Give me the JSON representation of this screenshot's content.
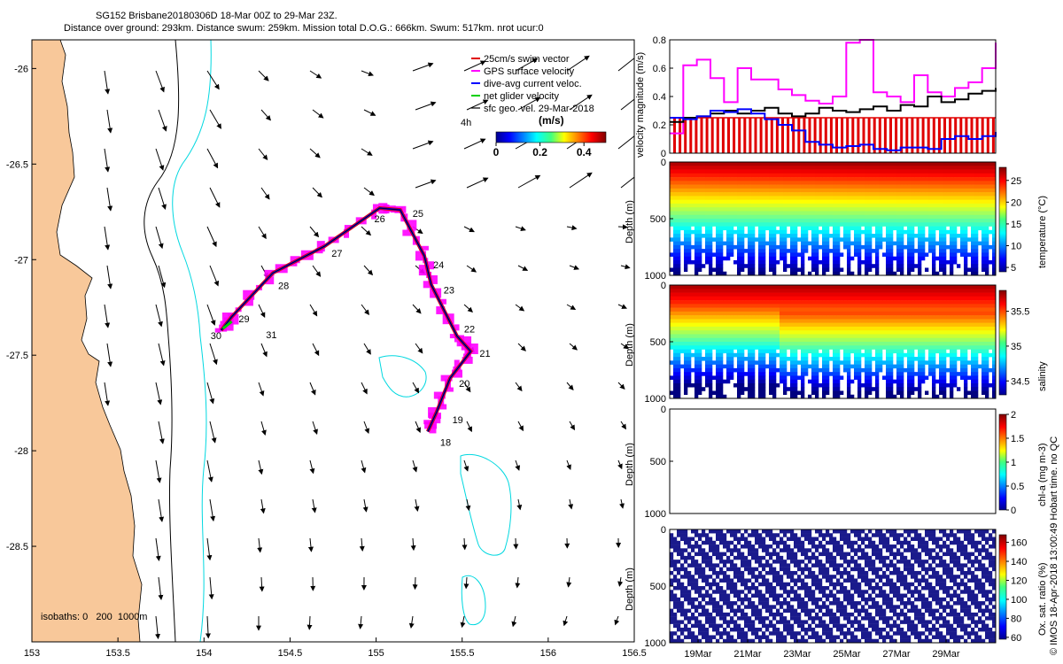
{
  "header": {
    "line1": "SG152 Brisbane20180306D 18-Mar 00Z to 29-Mar 23Z.",
    "line2": "Distance over ground: 293km. Distance swum: 259km. Mission total D.O.G.: 666km. Swum: 517km. nrot ucur:0"
  },
  "credit": "© IMOS 18-Apr-2018 13:00:49 Hobart time. no QC",
  "colors": {
    "land": "#f8c89a",
    "swim": "#e00000",
    "gps": "#ff00ff",
    "dac": "#0000ff",
    "net": "#00d000",
    "isobath_near": "#000000",
    "isobath_far": "#00d8e0"
  },
  "chart_data": [
    {
      "type": "scatter",
      "panel": "map",
      "xticks": [
        "153",
        "153.5",
        "154",
        "154.5",
        "155",
        "155.5",
        "156",
        "156.5"
      ],
      "yticks": [
        "-26",
        "-26.5",
        "-27",
        "-27.5",
        "-28",
        "-28.5"
      ],
      "xlim": [
        153,
        156.5
      ],
      "ylim": [
        -29,
        -25.85
      ],
      "legend": {
        "position": "top-right",
        "entries": [
          "25cm/s swim vector",
          "GPS surface velocity",
          "dive-avg current veloc.",
          "net glider velocity",
          "sfc geo. vel. 29-Mar-2018"
        ]
      },
      "arrow_scale_label": "4h",
      "colorbar": {
        "label": "(m/s)",
        "ticks": [
          "0",
          "0.2",
          "0.4"
        ],
        "range": [
          0,
          0.5
        ]
      },
      "isobaths_label": "isobaths: 0   200  1000m",
      "track_points": [
        {
          "day": "30",
          "lon": 154.1,
          "lat": -27.37
        },
        {
          "day": "29",
          "lon": 154.16,
          "lat": -27.3
        },
        {
          "day": "28",
          "lon": 154.4,
          "lat": -27.07
        },
        {
          "day": "27",
          "lon": 154.7,
          "lat": -26.93
        },
        {
          "day": "26",
          "lon": 155.02,
          "lat": -26.73
        },
        {
          "day": "25",
          "lon": 155.14,
          "lat": -26.74
        },
        {
          "day": "24",
          "lon": 155.28,
          "lat": -26.98
        },
        {
          "day": "23",
          "lon": 155.32,
          "lat": -27.13
        },
        {
          "day": "22",
          "lon": 155.47,
          "lat": -27.4
        },
        {
          "day": "21",
          "lon": 155.55,
          "lat": -27.48
        },
        {
          "day": "20",
          "lon": 155.43,
          "lat": -27.62
        },
        {
          "day": "19",
          "lon": 155.35,
          "lat": -27.8
        },
        {
          "day": "18",
          "lon": 155.3,
          "lat": -27.9
        }
      ],
      "track_extra_labels": [
        {
          "day": "31",
          "lon": 154.36,
          "lat": -27.41
        }
      ]
    },
    {
      "type": "line",
      "panel": "velocity",
      "ylabel": "velocity magnitude (m/s)",
      "ylim": [
        0,
        0.8
      ],
      "yticks": [
        "0",
        "0.2",
        "0.4",
        "0.6",
        "0.8"
      ],
      "x_days": [
        0,
        0.5,
        1,
        1.5,
        2,
        2.5,
        3,
        3.5,
        4,
        4.5,
        5,
        5.5,
        6,
        6.5,
        7,
        7.5,
        8,
        8.5,
        9,
        9.5,
        10,
        10.5,
        11,
        11.5,
        12
      ],
      "series": [
        {
          "key": "gps",
          "values": [
            0.14,
            0.62,
            0.66,
            0.53,
            0.36,
            0.6,
            0.52,
            0.52,
            0.45,
            0.41,
            0.37,
            0.35,
            0.4,
            0.78,
            0.8,
            0.43,
            0.4,
            0.36,
            0.55,
            0.43,
            0.4,
            0.46,
            0.5,
            0.6,
            0.78
          ]
        },
        {
          "key": "net",
          "values": [
            0.22,
            0.25,
            0.26,
            0.28,
            0.3,
            0.28,
            0.3,
            0.32,
            0.28,
            0.26,
            0.28,
            0.32,
            0.3,
            0.29,
            0.31,
            0.33,
            0.3,
            0.34,
            0.33,
            0.4,
            0.36,
            0.38,
            0.42,
            0.44,
            0.46
          ]
        },
        {
          "key": "dac",
          "values": [
            0.25,
            0.24,
            0.26,
            0.3,
            0.29,
            0.31,
            0.28,
            0.24,
            0.2,
            0.16,
            0.08,
            0.06,
            0.04,
            0.05,
            0.06,
            0.03,
            0.02,
            0.04,
            0.04,
            0.03,
            0.1,
            0.12,
            0.1,
            0.12,
            0.15
          ]
        },
        {
          "key": "swim",
          "values": [
            0.25,
            0.25,
            0.25,
            0.25,
            0.25,
            0.25,
            0.25,
            0.25,
            0.25,
            0.25,
            0.25,
            0.25,
            0.25,
            0.25,
            0.25,
            0.25,
            0.25,
            0.25,
            0.25,
            0.25,
            0.25,
            0.25,
            0.25,
            0.25,
            0.25
          ]
        }
      ]
    },
    {
      "type": "heatmap",
      "panel": "temperature",
      "ylabel": "Depth (m)",
      "yticks": [
        "0",
        "500",
        "1000"
      ],
      "colorbar_label": "temperature (°C)",
      "colorbar_ticks": [
        "5",
        "10",
        "15",
        "20",
        "25"
      ],
      "crange": [
        4,
        28
      ]
    },
    {
      "type": "heatmap",
      "panel": "salinity",
      "ylabel": "Depth (m)",
      "yticks": [
        "0",
        "500",
        "1000"
      ],
      "colorbar_label": "salinity",
      "colorbar_ticks": [
        "34.5",
        "35",
        "35.5"
      ],
      "crange": [
        34.3,
        35.8
      ]
    },
    {
      "type": "heatmap",
      "panel": "chla",
      "ylabel": "Depth (m)",
      "yticks": [
        "0",
        "500",
        "1000"
      ],
      "colorbar_label": "chl-a (mg m-3)",
      "colorbar_ticks": [
        "0",
        "0.5",
        "1",
        "1.5",
        "2"
      ],
      "crange": [
        0,
        2
      ]
    },
    {
      "type": "heatmap",
      "panel": "oxygen",
      "ylabel": "Depth (m)",
      "yticks": [
        "0",
        "500",
        "1000"
      ],
      "colorbar_label": "Ox. sat. ratio (%)",
      "colorbar_ticks": [
        "60",
        "80",
        "100",
        "120",
        "140",
        "160"
      ],
      "crange": [
        58,
        168
      ]
    },
    {
      "type": "table",
      "panel": "time-axis",
      "xticks": [
        "19Mar",
        "21Mar",
        "23Mar",
        "25Mar",
        "27Mar",
        "29Mar"
      ]
    }
  ]
}
